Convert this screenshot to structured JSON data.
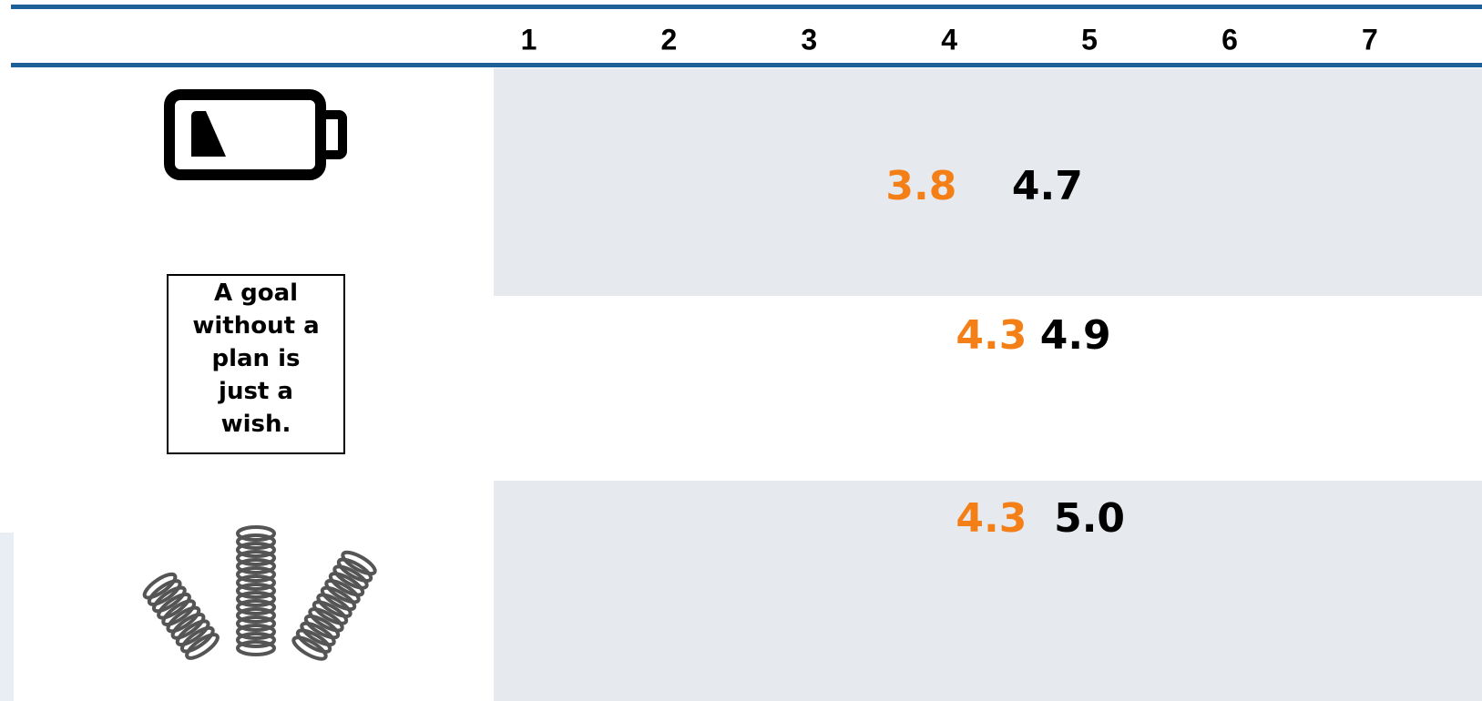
{
  "chart_data": {
    "type": "dot",
    "categories": [
      null,
      "A goal without a plan is just a wish.",
      null
    ],
    "series": [
      {
        "color": "#f57f17",
        "values": [
          3.8,
          4.3,
          4.3
        ]
      },
      {
        "color": "#000000",
        "values": [
          4.7,
          4.9,
          5.0
        ],
        "value_labels": [
          "4.7",
          "4.9",
          "5.0"
        ]
      }
    ],
    "xlim": [
      0.75,
      7.8
    ],
    "xticks": [
      1,
      2,
      3,
      4,
      5,
      6,
      7
    ]
  }
}
